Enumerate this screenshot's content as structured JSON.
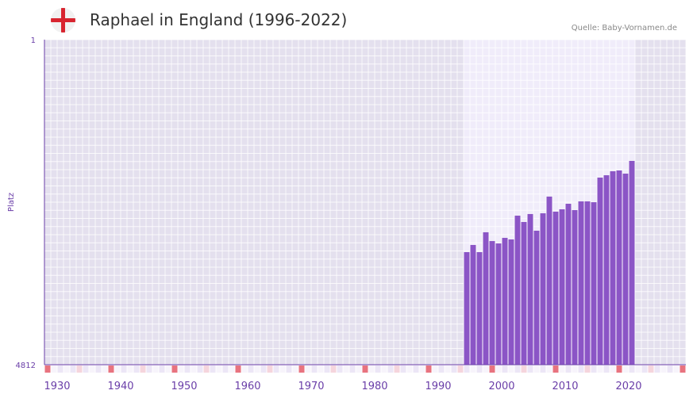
{
  "header": {
    "title": "Raphael in England (1996-2022)",
    "source": "Quelle: Baby-Vornamen.de",
    "flag_icon": "england-flag-icon"
  },
  "chart_data": {
    "type": "bar",
    "title": "Raphael in England (1996-2022)",
    "xlabel": "",
    "ylabel": "Platz",
    "y_reversed": true,
    "ylim": [
      1,
      4812
    ],
    "y_tick_labels": [
      "1",
      "4812"
    ],
    "xlim": [
      1930,
      2030
    ],
    "x_tick_labels": [
      "1930",
      "1940",
      "1950",
      "1960",
      "1970",
      "1980",
      "1990",
      "2000",
      "2010",
      "2020"
    ],
    "x": [
      1996,
      1997,
      1998,
      1999,
      2000,
      2001,
      2002,
      2003,
      2004,
      2005,
      2006,
      2007,
      2008,
      2009,
      2010,
      2011,
      2012,
      2013,
      2014,
      2015,
      2016,
      2017,
      2018,
      2019,
      2020,
      2021,
      2022
    ],
    "values": [
      3146,
      3040,
      3146,
      2852,
      2982,
      3017,
      2935,
      2958,
      2606,
      2700,
      2582,
      2829,
      2571,
      2324,
      2547,
      2512,
      2430,
      2524,
      2395,
      2395,
      2407,
      2043,
      2008,
      1949,
      1937,
      1984,
      1796
    ],
    "grid": true,
    "colors": {
      "bar": "#8b55c6",
      "axis": "#6a3ea8",
      "bg_dark": "#e4e0ee",
      "bg_light": "#f0ecfa",
      "marker_decade": "#e8737f",
      "marker_half": "#f5d5dd",
      "marker_other": "#ece6f6"
    }
  }
}
